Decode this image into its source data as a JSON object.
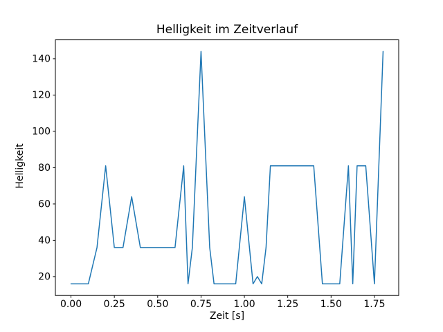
{
  "figure": {
    "background": "#ffffff",
    "frame_color": "#000000"
  },
  "chart_data": {
    "type": "line",
    "title": "Helligkeit im Zeitverlauf",
    "xlabel": "Zeit [s]",
    "ylabel": "Helligkeit",
    "line_color": "#1f77b4",
    "grid": false,
    "legend": null,
    "xlim": [
      -0.09,
      1.89
    ],
    "ylim": [
      9.6,
      150.4
    ],
    "xticks": [
      0.0,
      0.25,
      0.5,
      0.75,
      1.0,
      1.25,
      1.5,
      1.75
    ],
    "xtick_labels": [
      "0.00",
      "0.25",
      "0.50",
      "0.75",
      "1.00",
      "1.25",
      "1.50",
      "1.75"
    ],
    "yticks": [
      20,
      40,
      60,
      80,
      100,
      120,
      140
    ],
    "ytick_labels": [
      "20",
      "40",
      "60",
      "80",
      "100",
      "120",
      "140"
    ],
    "x": [
      0.0,
      0.05,
      0.1,
      0.15,
      0.2,
      0.25,
      0.3,
      0.35,
      0.4,
      0.45,
      0.5,
      0.55,
      0.6,
      0.65,
      0.675,
      0.7,
      0.75,
      0.8,
      0.825,
      0.85,
      0.9,
      0.95,
      1.0,
      1.05,
      1.075,
      1.1,
      1.125,
      1.15,
      1.2,
      1.25,
      1.3,
      1.35,
      1.4,
      1.45,
      1.5,
      1.55,
      1.6,
      1.625,
      1.65,
      1.7,
      1.75,
      1.8
    ],
    "y": [
      16,
      16,
      16,
      36,
      81,
      36,
      36,
      64,
      36,
      36,
      36,
      36,
      36,
      81,
      16,
      36,
      144,
      36,
      16,
      16,
      16,
      16,
      64,
      16,
      20,
      16,
      36,
      81,
      81,
      81,
      81,
      81,
      81,
      16,
      16,
      16,
      81,
      16,
      81,
      81,
      16,
      144
    ]
  }
}
